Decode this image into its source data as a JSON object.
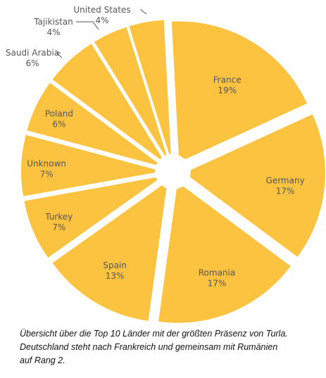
{
  "chart_data": {
    "type": "pie",
    "slices": [
      {
        "label": "France",
        "value": 19,
        "value_label": "19%"
      },
      {
        "label": "Germany",
        "value": 17,
        "value_label": "17%"
      },
      {
        "label": "Romania",
        "value": 17,
        "value_label": "17%"
      },
      {
        "label": "Spain",
        "value": 13,
        "value_label": "13%"
      },
      {
        "label": "Turkey",
        "value": 7,
        "value_label": "7%"
      },
      {
        "label": "Unknown",
        "value": 7,
        "value_label": "7%"
      },
      {
        "label": "Poland",
        "value": 6,
        "value_label": "6%"
      },
      {
        "label": "Saudi Arabia",
        "value": 6,
        "value_label": "6%"
      },
      {
        "label": "Tajikistan",
        "value": 4,
        "value_label": "4%"
      },
      {
        "label": "United States",
        "value": 4,
        "value_label": "4%"
      }
    ],
    "color": "#fbc33f",
    "label_color": "#555555",
    "exploded": true,
    "legend": "none"
  },
  "caption": {
    "lines": [
      "Übersicht über die Top 10 Länder mit der größten Präsenz von Turla.",
      "Deutschland steht nach Frankreich und gemeinsam mit Rumänien",
      "auf Rang 2."
    ]
  }
}
